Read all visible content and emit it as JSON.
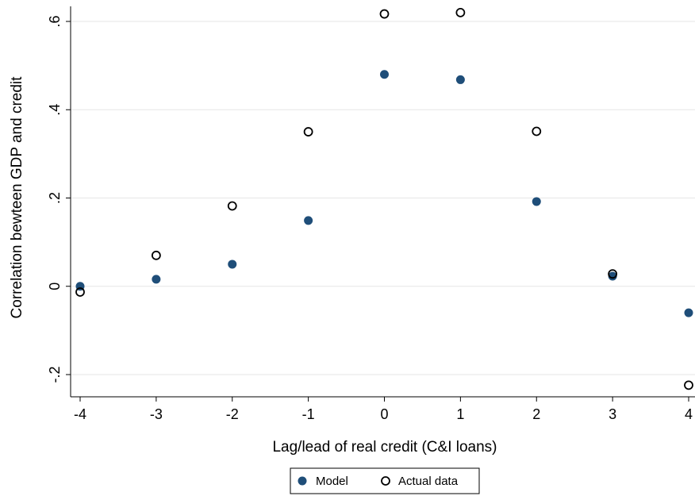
{
  "chart_data": {
    "type": "scatter",
    "xlabel": "Lag/lead of real credit (C&I loans)",
    "ylabel": "Correlation bewteen GDP and credit",
    "xlim": [
      -4,
      4
    ],
    "ylim": [
      -0.2,
      0.6
    ],
    "x_ticks": [
      -4,
      -3,
      -2,
      -1,
      0,
      1,
      2,
      3,
      4
    ],
    "x_tick_labels": [
      "-4",
      "-3",
      "-2",
      "-1",
      "0",
      "1",
      "2",
      "3",
      "4"
    ],
    "y_ticks": [
      -0.2,
      0,
      0.2,
      0.4,
      0.6
    ],
    "y_tick_labels": [
      "-.2",
      "0",
      ".2",
      ".4",
      ".6"
    ],
    "grid": true,
    "legend_position": "bottom-center",
    "series": [
      {
        "name": "Model",
        "marker": "filled-circle",
        "color": "#1f4e79",
        "x": [
          -4,
          -3,
          -2,
          -1,
          0,
          1,
          2,
          3,
          4
        ],
        "y": [
          0.0,
          0.016,
          0.05,
          0.149,
          0.48,
          0.468,
          0.192,
          0.023,
          -0.06
        ]
      },
      {
        "name": "Actual data",
        "marker": "hollow-circle",
        "color": "#000000",
        "x": [
          -4,
          -3,
          -2,
          -1,
          0,
          1,
          2,
          3,
          4
        ],
        "y": [
          -0.013,
          0.07,
          0.182,
          0.35,
          0.617,
          0.62,
          0.351,
          0.028,
          -0.224
        ]
      }
    ]
  }
}
